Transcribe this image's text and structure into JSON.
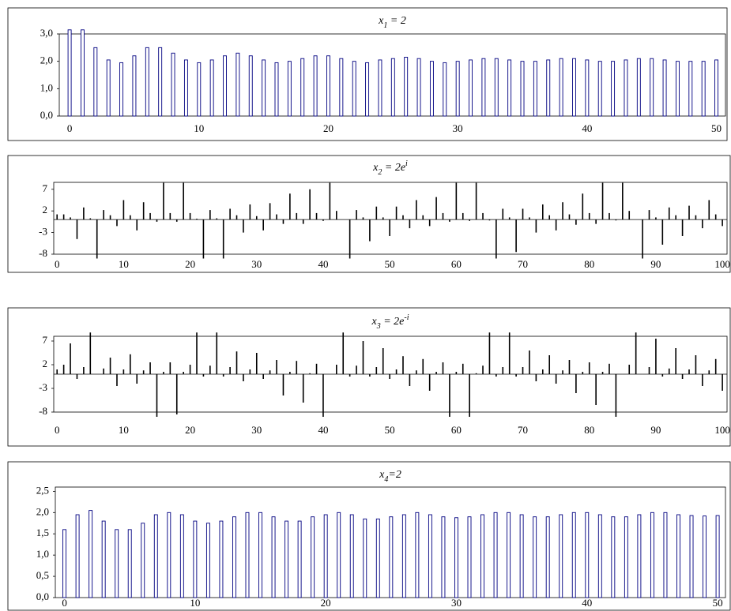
{
  "chart_data": [
    {
      "type": "bar",
      "title": [
        {
          "text": "x",
          "pos": "base"
        },
        {
          "text": "1",
          "pos": "sub"
        },
        {
          "text": " = 2",
          "pos": "base"
        }
      ],
      "x": [
        0,
        1,
        2,
        3,
        4,
        5,
        6,
        7,
        8,
        9,
        10,
        11,
        12,
        13,
        14,
        15,
        16,
        17,
        18,
        19,
        20,
        21,
        22,
        23,
        24,
        25,
        26,
        27,
        28,
        29,
        30,
        31,
        32,
        33,
        34,
        35,
        36,
        37,
        38,
        39,
        40,
        41,
        42,
        43,
        44,
        45,
        46,
        47,
        48,
        49,
        50
      ],
      "values": [
        3.15,
        3.15,
        2.5,
        2.05,
        1.95,
        2.2,
        2.5,
        2.5,
        2.3,
        2.05,
        1.95,
        2.05,
        2.2,
        2.3,
        2.2,
        2.05,
        1.95,
        2.0,
        2.1,
        2.2,
        2.2,
        2.1,
        2.0,
        1.95,
        2.05,
        2.1,
        2.15,
        2.1,
        2.0,
        1.95,
        2.0,
        2.05,
        2.1,
        2.1,
        2.05,
        2.0,
        2.0,
        2.05,
        2.1,
        2.1,
        2.05,
        2.0,
        2.0,
        2.05,
        2.1,
        2.1,
        2.05,
        2.0,
        2.0,
        2.0,
        2.05
      ],
      "color": "#000080",
      "bar_style": "outline",
      "xlim": [
        -0.8,
        50.7
      ],
      "xticks": [
        0,
        10,
        20,
        30,
        40,
        50
      ],
      "ylim": [
        0,
        3
      ],
      "yticks": [
        {
          "value": 0,
          "label": "0,0"
        },
        {
          "value": 1,
          "label": "1,0"
        },
        {
          "value": 2,
          "label": "2,0"
        },
        {
          "value": 3,
          "label": "3,0"
        }
      ],
      "grid": false
    },
    {
      "type": "bar",
      "title": [
        {
          "text": "x",
          "pos": "base"
        },
        {
          "text": "2",
          "pos": "sub"
        },
        {
          "text": " = 2e",
          "pos": "base"
        },
        {
          "text": "i",
          "pos": "sup"
        }
      ],
      "x": [
        0,
        1,
        2,
        3,
        4,
        5,
        6,
        7,
        8,
        9,
        10,
        11,
        12,
        13,
        14,
        15,
        16,
        17,
        18,
        19,
        20,
        21,
        22,
        23,
        24,
        25,
        26,
        27,
        28,
        29,
        30,
        31,
        32,
        33,
        34,
        35,
        36,
        37,
        38,
        39,
        40,
        41,
        42,
        43,
        44,
        45,
        46,
        47,
        48,
        49,
        50,
        51,
        52,
        53,
        54,
        55,
        56,
        57,
        58,
        59,
        60,
        61,
        62,
        63,
        64,
        65,
        66,
        67,
        68,
        69,
        70,
        71,
        72,
        73,
        74,
        75,
        76,
        77,
        78,
        79,
        80,
        81,
        82,
        83,
        84,
        85,
        86,
        87,
        88,
        89,
        90,
        91,
        92,
        93,
        94,
        95,
        96,
        97,
        98,
        99,
        100
      ],
      "values": [
        1.2,
        1.2,
        0.5,
        -4.5,
        2.8,
        0.3,
        -9,
        2.2,
        1,
        -1.5,
        4.5,
        1,
        -2.5,
        4,
        1.5,
        -0.5,
        8.5,
        1.5,
        -0.5,
        8.5,
        1.5,
        0.2,
        -9,
        2.2,
        0.3,
        -9,
        2.5,
        1,
        -3,
        3.5,
        0.8,
        -2.5,
        3.8,
        1.2,
        -1,
        6,
        1.5,
        -1,
        7,
        1.5,
        -0.3,
        8.5,
        2,
        0,
        -9,
        2.2,
        0.5,
        -5,
        3,
        0.5,
        -3.8,
        3,
        1,
        -2,
        4.5,
        1,
        -1.5,
        5.2,
        1.5,
        -0.5,
        8.5,
        1.5,
        -0.3,
        8.5,
        1.5,
        -0.2,
        -9,
        2.5,
        0.5,
        -7.5,
        2.5,
        0.5,
        -3,
        3.5,
        1,
        -2.5,
        4,
        1.2,
        -1.2,
        6,
        1.5,
        -1,
        8.5,
        1.5,
        -0.2,
        8.5,
        2,
        0,
        -9,
        2.2,
        0.5,
        -5.8,
        2.8,
        1,
        -3.8,
        3.2,
        1,
        -2,
        4.5,
        1.2,
        -1.5
      ],
      "color": "#000000",
      "bar_style": "solid",
      "xlim": [
        -0.5,
        100.7
      ],
      "xticks": [
        0,
        10,
        20,
        30,
        40,
        50,
        60,
        70,
        80,
        90,
        100
      ],
      "ylim": [
        -8,
        8.6
      ],
      "yticks": [
        -8,
        -3,
        2,
        7
      ],
      "grid": false
    },
    {
      "type": "bar",
      "title": [
        {
          "text": "x",
          "pos": "base"
        },
        {
          "text": "3",
          "pos": "sub"
        },
        {
          "text": " = 2e",
          "pos": "base"
        },
        {
          "text": "-i",
          "pos": "sup"
        }
      ],
      "x": [
        0,
        1,
        2,
        3,
        4,
        5,
        6,
        7,
        8,
        9,
        10,
        11,
        12,
        13,
        14,
        15,
        16,
        17,
        18,
        19,
        20,
        21,
        22,
        23,
        24,
        25,
        26,
        27,
        28,
        29,
        30,
        31,
        32,
        33,
        34,
        35,
        36,
        37,
        38,
        39,
        40,
        41,
        42,
        43,
        44,
        45,
        46,
        47,
        48,
        49,
        50,
        51,
        52,
        53,
        54,
        55,
        56,
        57,
        58,
        59,
        60,
        61,
        62,
        63,
        64,
        65,
        66,
        67,
        68,
        69,
        70,
        71,
        72,
        73,
        74,
        75,
        76,
        77,
        78,
        79,
        80,
        81,
        82,
        83,
        84,
        85,
        86,
        87,
        88,
        89,
        90,
        91,
        92,
        93,
        94,
        95,
        96,
        97,
        98,
        99,
        100
      ],
      "values": [
        1,
        2,
        6.5,
        -1,
        1.5,
        8.8,
        0,
        1.2,
        3.5,
        -2.5,
        1,
        4.2,
        -2,
        0.8,
        2.5,
        -9,
        0.5,
        2.5,
        -8.5,
        0.5,
        2,
        8.8,
        -0.5,
        1.8,
        8.8,
        -0.5,
        1.5,
        4.8,
        -1.5,
        1,
        4.5,
        -1,
        0.8,
        3,
        -4.5,
        0.5,
        2.8,
        -6,
        0.2,
        2.2,
        -9,
        0,
        2,
        8.8,
        -0.5,
        1.8,
        7,
        -0.5,
        1.5,
        5.5,
        -1,
        1,
        3.8,
        -2.5,
        0.8,
        3.2,
        -3.5,
        0.5,
        2.5,
        -9,
        0.5,
        2.2,
        -9,
        0.2,
        1.8,
        8.8,
        -0.5,
        1.5,
        8.8,
        -0.5,
        1.5,
        5,
        -1.5,
        1,
        4,
        -2,
        0.8,
        3,
        -4,
        0.5,
        2.5,
        -6.5,
        0.5,
        2.2,
        -9,
        0,
        2,
        8.8,
        0,
        1.5,
        7.5,
        -0.5,
        1.2,
        5.5,
        -1,
        1,
        4,
        -2.5,
        0.8,
        3.2,
        -3.5
      ],
      "color": "#000000",
      "bar_style": "solid",
      "xlim": [
        -0.5,
        100.7
      ],
      "xticks": [
        0,
        10,
        20,
        30,
        40,
        50,
        60,
        70,
        80,
        90,
        100
      ],
      "ylim": [
        -8,
        8
      ],
      "yticks": [
        -8,
        -3,
        2,
        7
      ],
      "grid": false
    },
    {
      "type": "bar",
      "title": [
        {
          "text": "x",
          "pos": "base"
        },
        {
          "text": "4",
          "pos": "sub"
        },
        {
          "text": "=2",
          "pos": "base"
        }
      ],
      "x": [
        0,
        1,
        2,
        3,
        4,
        5,
        6,
        7,
        8,
        9,
        10,
        11,
        12,
        13,
        14,
        15,
        16,
        17,
        18,
        19,
        20,
        21,
        22,
        23,
        24,
        25,
        26,
        27,
        28,
        29,
        30,
        31,
        32,
        33,
        34,
        35,
        36,
        37,
        38,
        39,
        40,
        41,
        42,
        43,
        44,
        45,
        46,
        47,
        48,
        49,
        50
      ],
      "values": [
        1.6,
        1.95,
        2.05,
        1.8,
        1.6,
        1.6,
        1.75,
        1.95,
        2.0,
        1.95,
        1.8,
        1.75,
        1.8,
        1.9,
        2.0,
        2.0,
        1.9,
        1.8,
        1.8,
        1.9,
        1.95,
        2.0,
        1.95,
        1.85,
        1.85,
        1.9,
        1.95,
        2.0,
        1.95,
        1.9,
        1.88,
        1.9,
        1.95,
        2.0,
        2.0,
        1.95,
        1.9,
        1.9,
        1.95,
        2.0,
        2.0,
        1.95,
        1.9,
        1.9,
        1.95,
        2.0,
        2.0,
        1.95,
        1.93,
        1.92,
        1.93
      ],
      "color": "#000080",
      "bar_style": "outline",
      "xlim": [
        -0.7,
        50.6
      ],
      "xticks": [
        0,
        10,
        20,
        30,
        40,
        50
      ],
      "ylim": [
        0,
        2.6
      ],
      "yticks": [
        {
          "value": 0,
          "label": "0,0"
        },
        {
          "value": 0.5,
          "label": "0,5"
        },
        {
          "value": 1,
          "label": "1,0"
        },
        {
          "value": 1.5,
          "label": "1,5"
        },
        {
          "value": 2,
          "label": "2,0"
        },
        {
          "value": 2.5,
          "label": "2,5"
        }
      ],
      "grid": false
    }
  ]
}
